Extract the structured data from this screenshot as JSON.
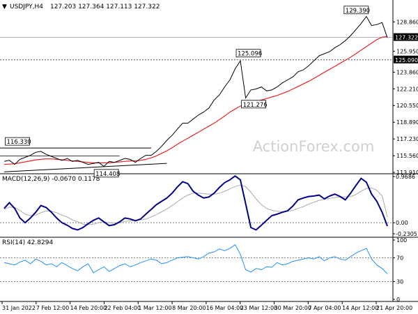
{
  "header": {
    "dropdown_glyph": "▼",
    "symbol": "USDJPY,H4",
    "ohlc": "127.203 127.364 127.113 127.322"
  },
  "watermark": "ActionForex.com",
  "colors": {
    "price_line": "#000000",
    "moving_average": "#e8262b",
    "macd_line": "#00008b",
    "macd_signal": "#aaaaaa",
    "rsi_line": "#1e90ff",
    "separator": "#000000",
    "dotted_level": "#555555",
    "tag_fill": "#000000",
    "tag_text": "#ffffff"
  },
  "x_axis": {
    "labels": [
      "31 Jan 2022",
      "7 Feb 12:00",
      "14 Feb 20:00",
      "22 Feb 04:00",
      "1 Mar 12:00",
      "8 Mar 20:00",
      "16 Mar 04:00",
      "23 Mar 12:00",
      "30 Mar 20:00",
      "7 Apr 04:00",
      "14 Apr 12:00",
      "21 Apr 20:00"
    ]
  },
  "chart_data": [
    {
      "type": "line",
      "title": "USDJPY,H4",
      "x_count": 74,
      "ylim": [
        113.91,
        130.9
      ],
      "y_ticks": [
        "128.860",
        "125.950",
        "123.860",
        "122.210",
        "120.550",
        "118.890",
        "117.230",
        "115.560",
        "113.910"
      ],
      "y_tick_values": [
        128.86,
        125.95,
        123.86,
        122.21,
        120.55,
        118.89,
        117.23,
        115.56,
        113.91
      ],
      "current_price": "127.322",
      "current_price_value": 127.322,
      "level_tag": "125.090",
      "level_value": 125.09,
      "series": [
        {
          "values": [
            115.0,
            115.1,
            114.7,
            115.2,
            115.4,
            115.6,
            115.9,
            116.0,
            115.7,
            115.5,
            115.3,
            115.1,
            115.3,
            115.0,
            115.1,
            114.9,
            114.7,
            114.8,
            114.9,
            114.5,
            115.0,
            114.9,
            115.1,
            115.3,
            115.2,
            114.9,
            115.3,
            115.6,
            115.6,
            116.0,
            116.5,
            117.1,
            117.6,
            118.2,
            118.8,
            118.8,
            119.2,
            119.6,
            119.9,
            120.3,
            121.1,
            121.6,
            122.4,
            123.1,
            124.2,
            125.0,
            121.3,
            122.1,
            122.2,
            122.4,
            122.0,
            122.1,
            122.4,
            122.8,
            123.1,
            123.4,
            123.9,
            124.1,
            124.5,
            125.0,
            125.5,
            125.7,
            125.9,
            126.3,
            126.6,
            127.0,
            127.5,
            128.1,
            128.7,
            129.4,
            128.5,
            128.6,
            128.8,
            127.3
          ]
        },
        {
          "values": [
            114.7,
            114.73,
            114.77,
            114.85,
            114.95,
            115.05,
            115.15,
            115.2,
            115.25,
            115.25,
            115.2,
            115.15,
            115.1,
            115.05,
            115.0,
            114.95,
            114.9,
            114.85,
            114.85,
            114.85,
            114.85,
            114.9,
            114.95,
            115.0,
            115.05,
            115.05,
            115.1,
            115.2,
            115.35,
            115.55,
            115.8,
            116.05,
            116.35,
            116.7,
            117.0,
            117.3,
            117.6,
            117.9,
            118.2,
            118.5,
            118.8,
            119.15,
            119.5,
            119.9,
            120.2,
            120.5,
            120.65,
            120.8,
            120.95,
            121.1,
            121.25,
            121.4,
            121.55,
            121.75,
            121.95,
            122.2,
            122.45,
            122.7,
            122.95,
            123.25,
            123.55,
            123.85,
            124.15,
            124.45,
            124.75,
            125.05,
            125.35,
            125.7,
            126.05,
            126.4,
            126.75,
            127.1,
            127.35,
            127.4
          ]
        }
      ],
      "annotations": [
        {
          "label": "116.330",
          "index": 1,
          "value": 116.33
        },
        {
          "label": "114.408",
          "index": 19,
          "value": 114.408
        },
        {
          "label": "125.096",
          "index": 45,
          "value": 125.096
        },
        {
          "label": "121.276",
          "index": 46,
          "value": 121.276
        },
        {
          "label": "129.390",
          "index": 69,
          "value": 129.39
        }
      ]
    },
    {
      "type": "line",
      "title": "MACD(12,26,9) -0.0670 0.1178",
      "x_count": 74,
      "ylim": [
        -0.2305,
        0.9686
      ],
      "y_ticks": [
        "0.9686",
        "0.00",
        "-0.2305"
      ],
      "y_tick_values": [
        0.9686,
        0.0,
        -0.2305
      ],
      "series": [
        {
          "values": [
            0.3,
            0.42,
            0.3,
            0.1,
            0.0,
            0.1,
            0.22,
            0.36,
            0.32,
            0.22,
            0.1,
            0.0,
            -0.05,
            -0.12,
            -0.15,
            -0.1,
            -0.02,
            0.05,
            0.1,
            0.02,
            -0.06,
            -0.04,
            0.02,
            0.1,
            0.08,
            0.04,
            0.08,
            0.18,
            0.28,
            0.38,
            0.45,
            0.52,
            0.62,
            0.75,
            0.86,
            0.82,
            0.66,
            0.58,
            0.52,
            0.54,
            0.62,
            0.74,
            0.84,
            0.9,
            0.98,
            0.9,
            0.4,
            -0.1,
            -0.15,
            -0.05,
            0.05,
            0.15,
            0.18,
            0.22,
            0.25,
            0.35,
            0.48,
            0.52,
            0.55,
            0.56,
            0.58,
            0.5,
            0.56,
            0.6,
            0.55,
            0.48,
            0.62,
            0.78,
            0.93,
            0.85,
            0.6,
            0.45,
            0.22,
            -0.07
          ]
        },
        {
          "values": [
            0.28,
            0.33,
            0.32,
            0.26,
            0.18,
            0.15,
            0.16,
            0.21,
            0.25,
            0.24,
            0.21,
            0.16,
            0.12,
            0.06,
            0.02,
            -0.03,
            -0.04,
            -0.03,
            0.0,
            0.02,
            0.0,
            -0.01,
            0.0,
            0.03,
            0.04,
            0.05,
            0.06,
            0.08,
            0.12,
            0.17,
            0.23,
            0.29,
            0.36,
            0.44,
            0.52,
            0.58,
            0.62,
            0.62,
            0.61,
            0.6,
            0.6,
            0.62,
            0.66,
            0.71,
            0.76,
            0.79,
            0.76,
            0.64,
            0.5,
            0.38,
            0.3,
            0.26,
            0.24,
            0.23,
            0.24,
            0.26,
            0.3,
            0.34,
            0.39,
            0.43,
            0.47,
            0.49,
            0.51,
            0.53,
            0.54,
            0.54,
            0.55,
            0.59,
            0.66,
            0.72,
            0.73,
            0.68,
            0.56,
            0.12
          ]
        }
      ]
    },
    {
      "type": "line",
      "title": "RSI(14) 42.8294",
      "x_count": 74,
      "ylim": [
        0,
        100
      ],
      "y_ticks": [
        "100",
        "70",
        "30",
        "0"
      ],
      "y_tick_values": [
        100,
        70,
        30,
        0
      ],
      "levels": [
        70,
        30
      ],
      "series": [
        {
          "values": [
            62,
            60,
            58,
            63,
            66,
            60,
            68,
            64,
            58,
            60,
            55,
            62,
            57,
            52,
            48,
            55,
            60,
            45,
            50,
            55,
            47,
            52,
            57,
            60,
            55,
            58,
            62,
            65,
            68,
            66,
            60,
            62,
            66,
            70,
            71,
            72,
            70,
            68,
            72,
            78,
            80,
            85,
            82,
            86,
            92,
            76,
            50,
            46,
            52,
            50,
            55,
            54,
            62,
            58,
            60,
            64,
            66,
            68,
            70,
            68,
            72,
            65,
            70,
            72,
            68,
            66,
            72,
            78,
            82,
            86,
            68,
            58,
            52,
            43
          ]
        }
      ]
    }
  ]
}
